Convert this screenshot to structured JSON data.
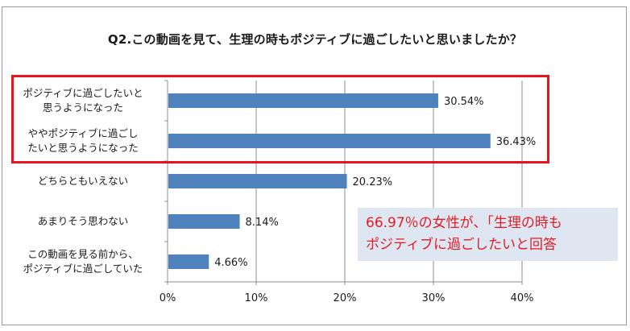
{
  "title": "Q2.この動画を見て、生理の時もポジティブに過ごしたいと思いましたか？",
  "colors": {
    "bar": "#4f81bd",
    "highlight": "#e8141c",
    "note_text": "#e31b23",
    "note_bg": "#dde6f1"
  },
  "note": {
    "line1": "66.97％の女性が、｢生理の時も",
    "line2": "ポジティブに過ごしたいと回答"
  },
  "chart_data": {
    "type": "bar",
    "orientation": "horizontal",
    "categories": [
      [
        "ポジティブに過ごしたいと",
        "思うようになった"
      ],
      [
        "ややポジティブに過ごし",
        "たいと思うようになった"
      ],
      [
        "どちらともいえない"
      ],
      [
        "あまりそう思わない"
      ],
      [
        "この動画を見る前から、",
        "ポジティブに過ごしていた"
      ]
    ],
    "values": [
      30.54,
      36.43,
      20.23,
      8.14,
      4.66
    ],
    "value_labels": [
      "30.54%",
      "36.43%",
      "20.23%",
      "8.14%",
      "4.66%"
    ],
    "xlim": [
      0,
      40
    ],
    "ticks": [
      0,
      10,
      20,
      30,
      40
    ],
    "tick_labels": [
      "0%",
      "10%",
      "20%",
      "30%",
      "40%"
    ],
    "grid": true,
    "legend": false
  }
}
